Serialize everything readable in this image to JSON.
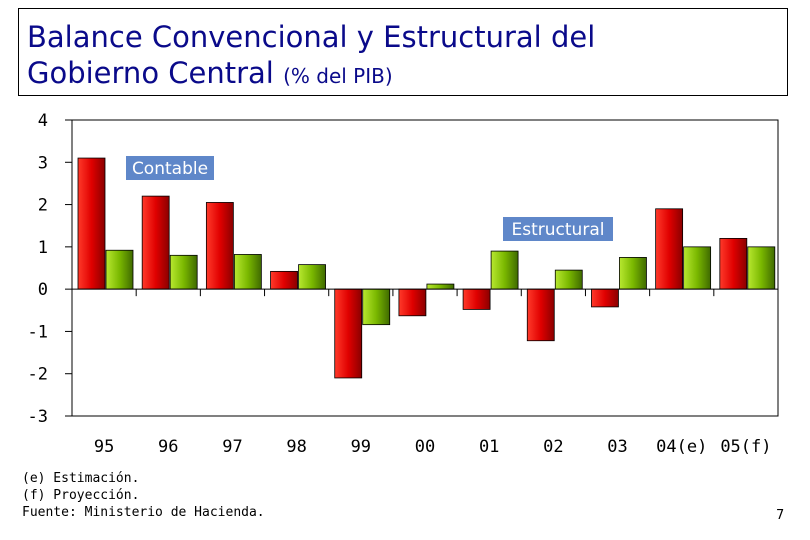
{
  "title": {
    "line1": "Balance Convencional y Estructural del",
    "line2": "Gobierno Central",
    "unit": "(% del PIB)"
  },
  "chart_data": {
    "type": "bar",
    "categories": [
      "95",
      "96",
      "97",
      "98",
      "99",
      "00",
      "01",
      "02",
      "03",
      "04(e)",
      "05(f)"
    ],
    "series": [
      {
        "name": "Contable",
        "color": "#e00000",
        "values": [
          3.1,
          2.2,
          2.05,
          0.42,
          -2.1,
          -0.63,
          -0.48,
          -1.22,
          -0.42,
          1.9,
          1.2
        ]
      },
      {
        "name": "Estructural",
        "color": "#7ab800",
        "values": [
          0.92,
          0.8,
          0.82,
          0.58,
          -0.84,
          0.12,
          0.9,
          0.45,
          0.75,
          1.0,
          1.0
        ]
      }
    ],
    "ylim": [
      -3,
      4
    ],
    "yticks": [
      "4",
      "3",
      "2",
      "1",
      "0",
      "-1",
      "-2",
      "-3"
    ],
    "yticks_values": [
      4,
      3,
      2,
      1,
      0,
      -1,
      -2,
      -3
    ],
    "grid": false,
    "legend_labels": [
      "Contable",
      "Estructural"
    ]
  },
  "footnotes": [
    "(e) Estimación.",
    "(f) Proyección.",
    "Fuente: Ministerio de Hacienda."
  ],
  "page_number": "7"
}
